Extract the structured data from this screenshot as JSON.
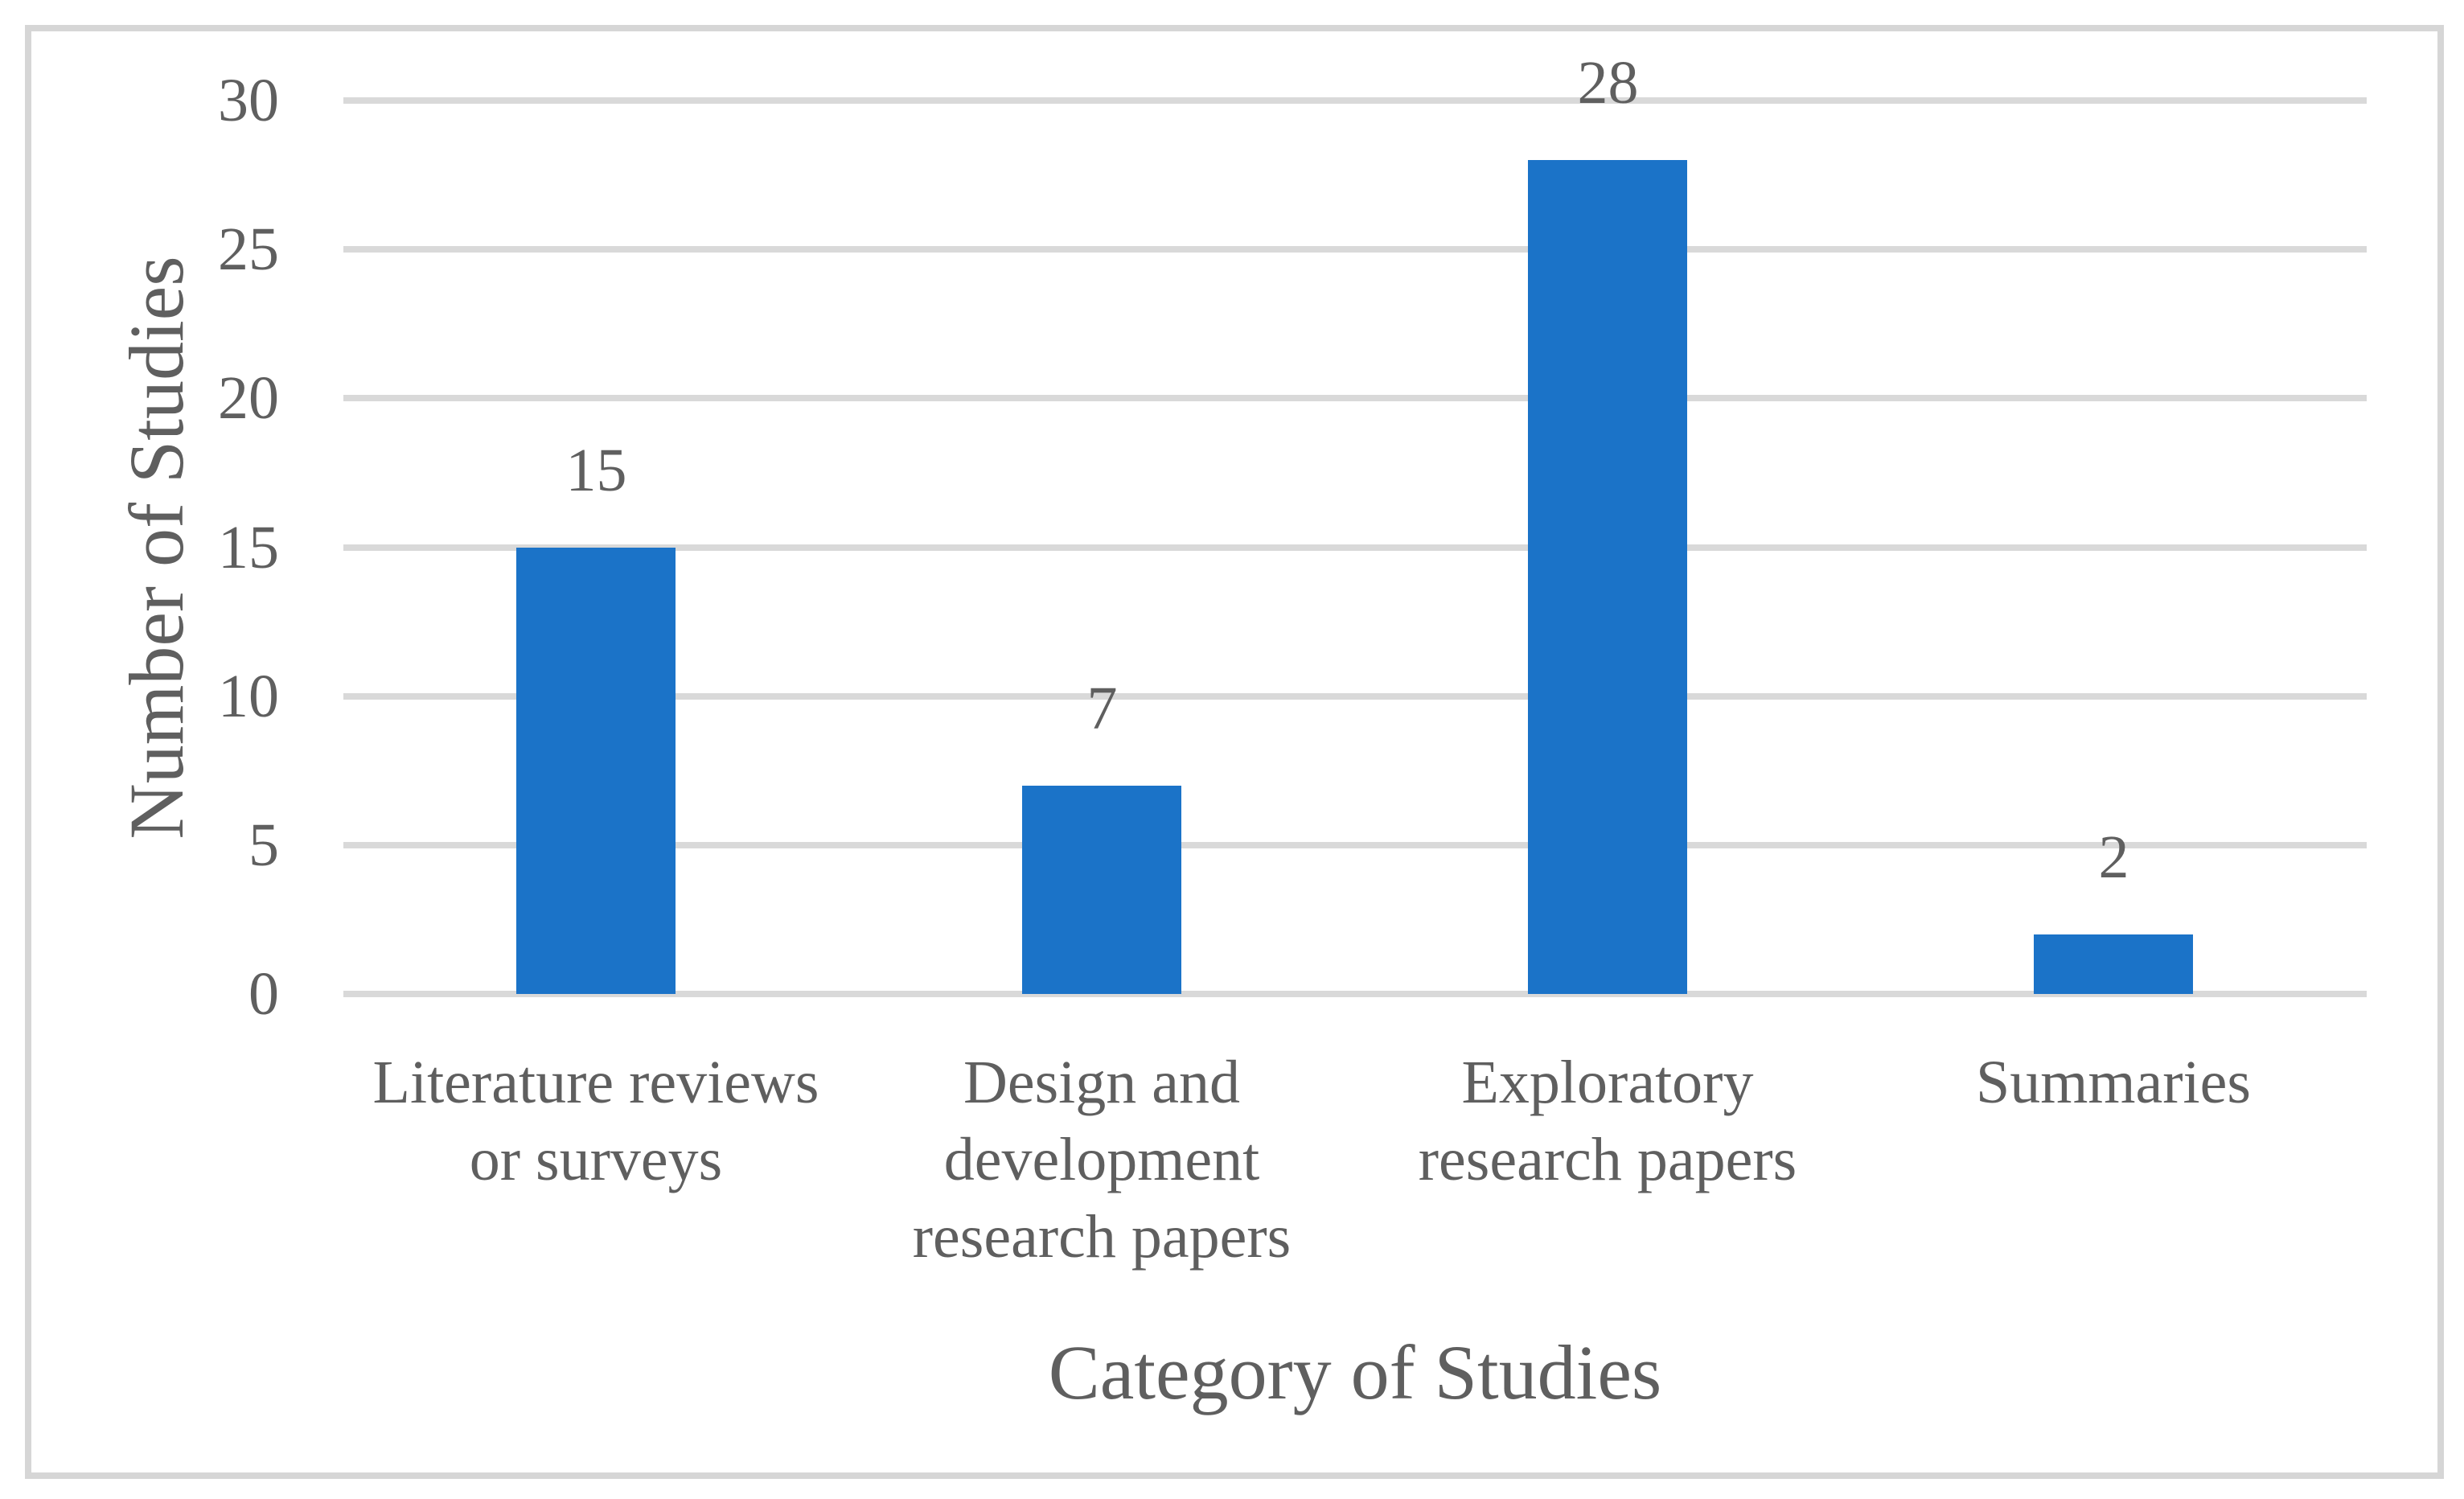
{
  "figure": {
    "background": "#ffffff",
    "frame_color": "#d6d6d6"
  },
  "chart_data": {
    "type": "bar",
    "title": "",
    "categories": [
      "Literature reviews or surveys",
      "Design and development research papers",
      "Exploratory research papers",
      "Summaries"
    ],
    "values": [
      15,
      7,
      28,
      2
    ],
    "data_labels": [
      "15",
      "7",
      "28",
      "2"
    ],
    "xlabel": "Category of Studies",
    "ylabel": "Number of Studies",
    "yticks": [
      0,
      5,
      10,
      15,
      20,
      25,
      30
    ],
    "ylim": [
      0,
      30
    ],
    "grid": "horizontal",
    "legend": "none",
    "bar_color": "#1b73c8",
    "gridline_color": "#d9d9d9",
    "text_color": "#5f5f5f"
  }
}
